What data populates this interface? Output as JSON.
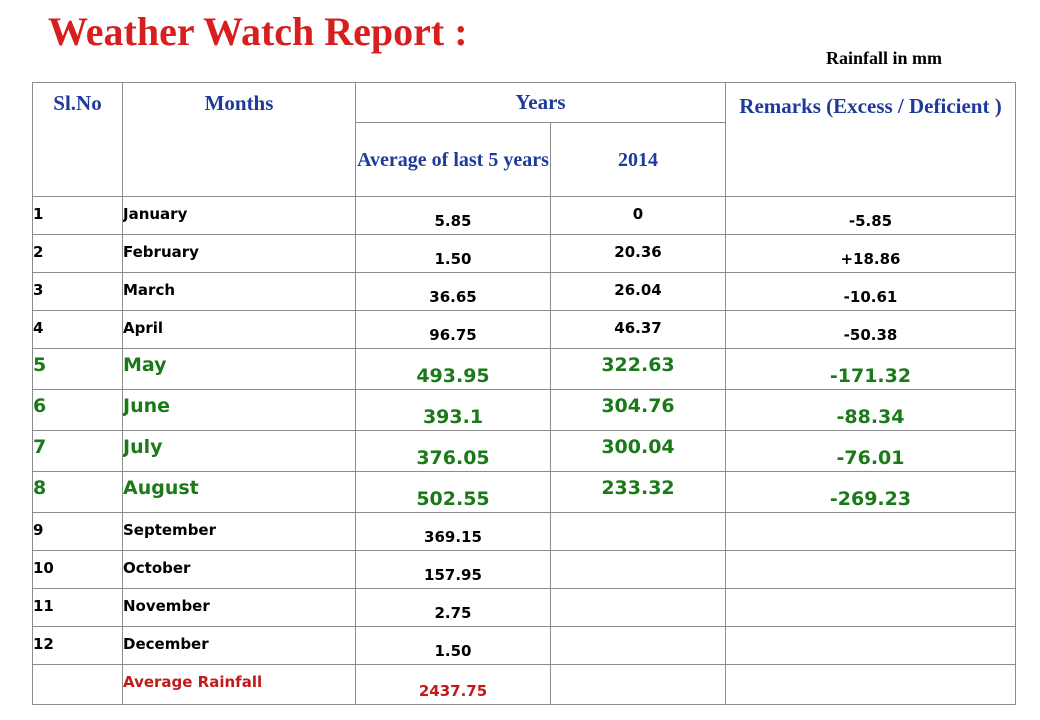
{
  "title": "Weather Watch Report :",
  "unit_note": "Rainfall in mm",
  "table": {
    "headers": {
      "slno": "Sl.No",
      "months": "Months",
      "years": "Years",
      "remarks": "Remarks (Excess / Deficient )",
      "avg5": "Average of last 5 years",
      "year": "2014"
    },
    "rows": [
      {
        "sl": "1",
        "month": "January",
        "avg": "5.85",
        "y2014": "0",
        "remark": "-5.85"
      },
      {
        "sl": "2",
        "month": "February",
        "avg": "1.50",
        "y2014": "20.36",
        "remark": "+18.86"
      },
      {
        "sl": "3",
        "month": "March",
        "avg": "36.65",
        "y2014": "26.04",
        "remark": "-10.61"
      },
      {
        "sl": "4",
        "month": "April",
        "avg": "96.75",
        "y2014": "46.37",
        "remark": "-50.38"
      },
      {
        "sl": "5",
        "month": "May",
        "avg": "493.95",
        "y2014": "322.63",
        "remark": "-171.32"
      },
      {
        "sl": "6",
        "month": "June",
        "avg": "393.1",
        "y2014": "304.76",
        "remark": "-88.34"
      },
      {
        "sl": "7",
        "month": "July",
        "avg": "376.05",
        "y2014": "300.04",
        "remark": "-76.01"
      },
      {
        "sl": "8",
        "month": "August",
        "avg": "502.55",
        "y2014": "233.32",
        "remark": "-269.23"
      },
      {
        "sl": "9",
        "month": "September",
        "avg": "369.15",
        "y2014": "",
        "remark": ""
      },
      {
        "sl": "10",
        "month": "October",
        "avg": "157.95",
        "y2014": "",
        "remark": ""
      },
      {
        "sl": "11",
        "month": "November",
        "avg": "2.75",
        "y2014": "",
        "remark": ""
      },
      {
        "sl": "12",
        "month": "December",
        "avg": "1.50",
        "y2014": "",
        "remark": ""
      }
    ],
    "average_row": {
      "label": "Average Rainfall",
      "avg": "2437.75"
    }
  },
  "colors": {
    "title": "#d81f1f",
    "header_text": "#1f3a9a",
    "highlight_rows": "#1a7a1a",
    "average_row": "#c11a1a"
  }
}
